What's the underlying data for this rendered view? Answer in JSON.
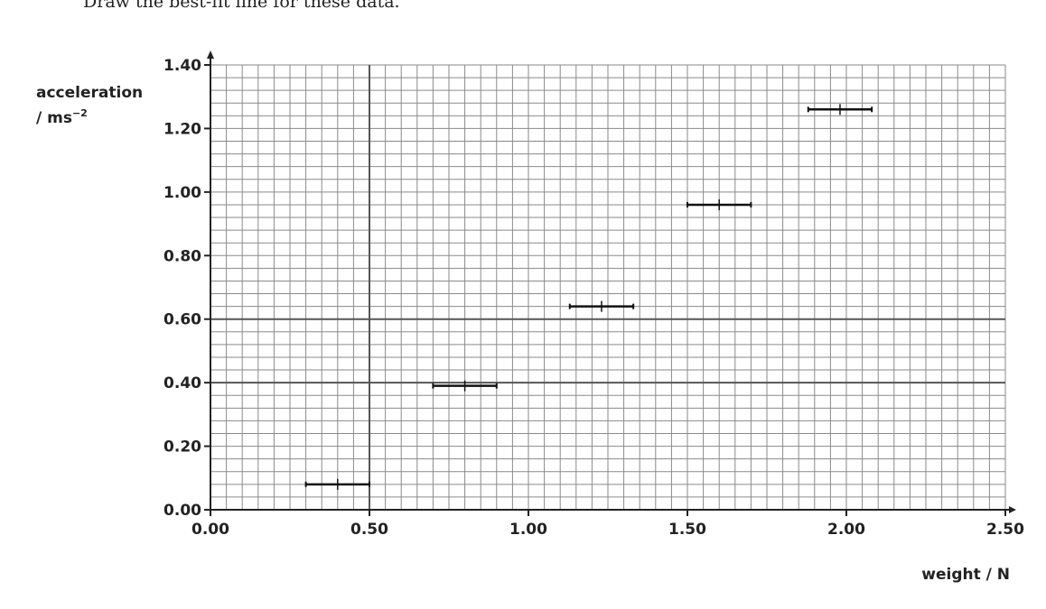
{
  "instruction": "Draw the best-fit line for these data.",
  "chart_data": {
    "type": "scatter",
    "title": "",
    "xlabel": "weight / N",
    "ylabel_line1": "acceleration",
    "ylabel_line2": "/ ms",
    "ylabel_superscript": "−2",
    "xlim": [
      0,
      2.5
    ],
    "ylim": [
      0,
      1.4
    ],
    "x_ticks": [
      "0.00",
      "0.50",
      "1.00",
      "1.50",
      "2.00",
      "2.50"
    ],
    "y_ticks": [
      "0.00",
      "0.20",
      "0.40",
      "0.60",
      "0.80",
      "1.00",
      "1.20",
      "1.40"
    ],
    "grid": true,
    "minor_grid_step_x": 0.05,
    "minor_grid_step_y": 0.04,
    "points": [
      {
        "x": 0.4,
        "y": 0.08,
        "x_err": 0.1
      },
      {
        "x": 0.8,
        "y": 0.39,
        "x_err": 0.1
      },
      {
        "x": 1.23,
        "y": 0.64,
        "x_err": 0.1
      },
      {
        "x": 1.6,
        "y": 0.96,
        "x_err": 0.1
      },
      {
        "x": 1.98,
        "y": 1.26,
        "x_err": 0.1
      }
    ],
    "colors": {
      "grid_minor": "#8a8a8a",
      "grid_major": "#555555",
      "axis": "#222222",
      "data": "#111111"
    }
  }
}
